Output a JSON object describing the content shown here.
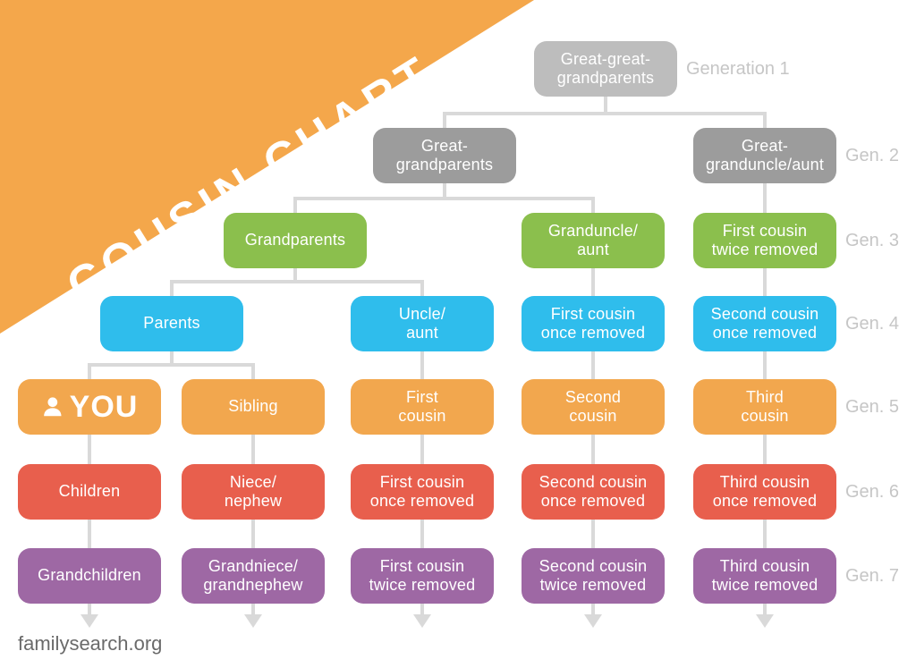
{
  "banner": {
    "title": "COUSIN CHART"
  },
  "footer": {
    "site": "familysearch.org"
  },
  "colors": {
    "banner_orange": "#F4A74B",
    "gray_light": "#BDBDBD",
    "gray": "#9C9C9C",
    "green": "#8BBF4D",
    "blue": "#2FBDEC",
    "orange": "#F2A74E",
    "red": "#E85F4D",
    "purple": "#9E68A4",
    "connector_gray": "#D9D9D9",
    "generation_label_gray": "#C6C6C6",
    "footer_text_gray": "#6A6A6A"
  },
  "generation_labels": [
    {
      "label": "Generation 1",
      "row": 1
    },
    {
      "label": "Gen. 2",
      "row": 2
    },
    {
      "label": "Gen. 3",
      "row": 3
    },
    {
      "label": "Gen. 4",
      "row": 4
    },
    {
      "label": "Gen. 5",
      "row": 5
    },
    {
      "label": "Gen. 6",
      "row": 6
    },
    {
      "label": "Gen. 7",
      "row": 7
    }
  ],
  "nodes": [
    {
      "id": "great-great-grandparents",
      "label": "Great-great-\ngrandparents",
      "color": "gray_light",
      "col": "root",
      "row": 1
    },
    {
      "id": "great-grandparents",
      "label": "Great-\ngrandparents",
      "color": "gray",
      "col": "gp2",
      "row": 2
    },
    {
      "id": "great-granduncle-aunt",
      "label": "Great-\ngranduncle/aunt",
      "color": "gray",
      "col": "c5",
      "row": 2
    },
    {
      "id": "grandparents",
      "label": "Grandparents",
      "color": "green",
      "col": "gp3",
      "row": 3
    },
    {
      "id": "granduncle-aunt",
      "label": "Granduncle/\naunt",
      "color": "green",
      "col": "c4",
      "row": 3
    },
    {
      "id": "first-cousin-twice-removed-up",
      "label": "First cousin\ntwice removed",
      "color": "green",
      "col": "c5",
      "row": 3
    },
    {
      "id": "parents",
      "label": "Parents",
      "color": "blue",
      "col": "gp4",
      "row": 4
    },
    {
      "id": "uncle-aunt",
      "label": "Uncle/\naunt",
      "color": "blue",
      "col": "c3",
      "row": 4
    },
    {
      "id": "first-cousin-once-removed-up",
      "label": "First cousin\nonce removed",
      "color": "blue",
      "col": "c4",
      "row": 4
    },
    {
      "id": "second-cousin-once-removed-up",
      "label": "Second cousin\nonce removed",
      "color": "blue",
      "col": "c5",
      "row": 4
    },
    {
      "id": "you",
      "label": "YOU",
      "color": "orange",
      "col": "c1",
      "row": 5,
      "icon": "person-icon"
    },
    {
      "id": "sibling",
      "label": "Sibling",
      "color": "orange",
      "col": "c2",
      "row": 5
    },
    {
      "id": "first-cousin",
      "label": "First\ncousin",
      "color": "orange",
      "col": "c3",
      "row": 5
    },
    {
      "id": "second-cousin",
      "label": "Second\ncousin",
      "color": "orange",
      "col": "c4",
      "row": 5
    },
    {
      "id": "third-cousin",
      "label": "Third\ncousin",
      "color": "orange",
      "col": "c5",
      "row": 5
    },
    {
      "id": "children",
      "label": "Children",
      "color": "red",
      "col": "c1",
      "row": 6
    },
    {
      "id": "niece-nephew",
      "label": "Niece/\nnephew",
      "color": "red",
      "col": "c2",
      "row": 6
    },
    {
      "id": "first-cousin-once-removed-down",
      "label": "First cousin\nonce removed",
      "color": "red",
      "col": "c3",
      "row": 6
    },
    {
      "id": "second-cousin-once-removed-down",
      "label": "Second cousin\nonce removed",
      "color": "red",
      "col": "c4",
      "row": 6
    },
    {
      "id": "third-cousin-once-removed",
      "label": "Third cousin\nonce removed",
      "color": "red",
      "col": "c5",
      "row": 6
    },
    {
      "id": "grandchildren",
      "label": "Grandchildren",
      "color": "purple",
      "col": "c1",
      "row": 7
    },
    {
      "id": "grandniece-grandnephew",
      "label": "Grandniece/\ngrandnephew",
      "color": "purple",
      "col": "c2",
      "row": 7
    },
    {
      "id": "first-cousin-twice-removed-down",
      "label": "First cousin\ntwice removed",
      "color": "purple",
      "col": "c3",
      "row": 7
    },
    {
      "id": "second-cousin-twice-removed",
      "label": "Second cousin\ntwice removed",
      "color": "purple",
      "col": "c4",
      "row": 7
    },
    {
      "id": "third-cousin-twice-removed",
      "label": "Third cousin\ntwice removed",
      "color": "purple",
      "col": "c5",
      "row": 7
    }
  ]
}
